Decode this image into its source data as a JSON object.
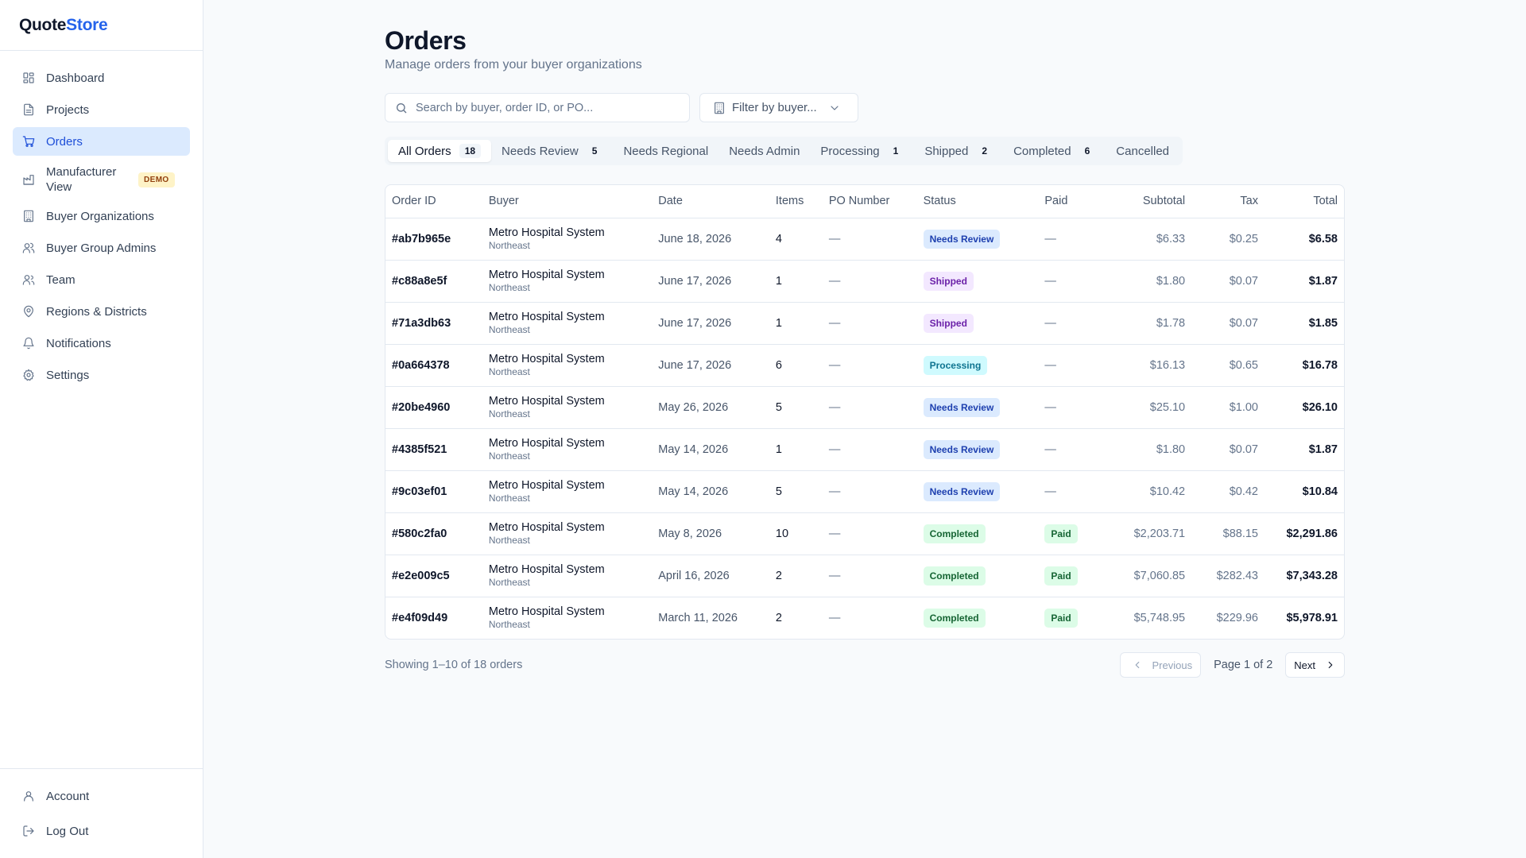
{
  "app": {
    "name_part1": "Quote",
    "name_part2": "Store"
  },
  "sidebar": {
    "items": [
      {
        "label": "Dashboard",
        "icon": "dashboard-icon"
      },
      {
        "label": "Projects",
        "icon": "document-icon"
      },
      {
        "label": "Orders",
        "icon": "cart-icon",
        "active": true
      },
      {
        "label": "Manufacturer View",
        "icon": "factory-icon",
        "badge": "DEMO"
      },
      {
        "label": "Buyer Organizations",
        "icon": "building-icon"
      },
      {
        "label": "Buyer Group Admins",
        "icon": "users-icon"
      },
      {
        "label": "Team",
        "icon": "team-icon"
      },
      {
        "label": "Regions & Districts",
        "icon": "map-pin-icon"
      },
      {
        "label": "Notifications",
        "icon": "bell-icon"
      },
      {
        "label": "Settings",
        "icon": "gear-icon"
      }
    ],
    "bottom": [
      {
        "label": "Account",
        "icon": "user-icon"
      },
      {
        "label": "Log Out",
        "icon": "logout-icon"
      }
    ]
  },
  "page": {
    "title": "Orders",
    "subtitle": "Manage orders from your buyer organizations"
  },
  "search": {
    "placeholder": "Search by buyer, order ID, or PO..."
  },
  "filter": {
    "label": "Filter by buyer..."
  },
  "tabs": [
    {
      "label": "All Orders",
      "count": "18",
      "active": true
    },
    {
      "label": "Needs Review",
      "count": "5"
    },
    {
      "label": "Needs Regional",
      "count": ""
    },
    {
      "label": "Needs Admin",
      "count": ""
    },
    {
      "label": "Processing",
      "count": "1"
    },
    {
      "label": "Shipped",
      "count": "2"
    },
    {
      "label": "Completed",
      "count": "6"
    },
    {
      "label": "Cancelled",
      "count": ""
    }
  ],
  "table": {
    "columns": [
      "Order ID",
      "Buyer",
      "Date",
      "Items",
      "PO Number",
      "Status",
      "Paid",
      "Subtotal",
      "Tax",
      "Total"
    ],
    "rows": [
      {
        "id": "#ab7b965e",
        "buyer": "Metro Hospital System",
        "region": "Northeast",
        "date": "June 18, 2026",
        "items": "4",
        "po": "—",
        "status": "Needs Review",
        "paid": "—",
        "subtotal": "$6.33",
        "tax": "$0.25",
        "total": "$6.58"
      },
      {
        "id": "#c88a8e5f",
        "buyer": "Metro Hospital System",
        "region": "Northeast",
        "date": "June 17, 2026",
        "items": "1",
        "po": "—",
        "status": "Shipped",
        "paid": "—",
        "subtotal": "$1.80",
        "tax": "$0.07",
        "total": "$1.87"
      },
      {
        "id": "#71a3db63",
        "buyer": "Metro Hospital System",
        "region": "Northeast",
        "date": "June 17, 2026",
        "items": "1",
        "po": "—",
        "status": "Shipped",
        "paid": "—",
        "subtotal": "$1.78",
        "tax": "$0.07",
        "total": "$1.85"
      },
      {
        "id": "#0a664378",
        "buyer": "Metro Hospital System",
        "region": "Northeast",
        "date": "June 17, 2026",
        "items": "6",
        "po": "—",
        "status": "Processing",
        "paid": "—",
        "subtotal": "$16.13",
        "tax": "$0.65",
        "total": "$16.78"
      },
      {
        "id": "#20be4960",
        "buyer": "Metro Hospital System",
        "region": "Northeast",
        "date": "May 26, 2026",
        "items": "5",
        "po": "—",
        "status": "Needs Review",
        "paid": "—",
        "subtotal": "$25.10",
        "tax": "$1.00",
        "total": "$26.10"
      },
      {
        "id": "#4385f521",
        "buyer": "Metro Hospital System",
        "region": "Northeast",
        "date": "May 14, 2026",
        "items": "1",
        "po": "—",
        "status": "Needs Review",
        "paid": "—",
        "subtotal": "$1.80",
        "tax": "$0.07",
        "total": "$1.87"
      },
      {
        "id": "#9c03ef01",
        "buyer": "Metro Hospital System",
        "region": "Northeast",
        "date": "May 14, 2026",
        "items": "5",
        "po": "—",
        "status": "Needs Review",
        "paid": "—",
        "subtotal": "$10.42",
        "tax": "$0.42",
        "total": "$10.84"
      },
      {
        "id": "#580c2fa0",
        "buyer": "Metro Hospital System",
        "region": "Northeast",
        "date": "May 8, 2026",
        "items": "10",
        "po": "—",
        "status": "Completed",
        "paid": "Paid",
        "subtotal": "$2,203.71",
        "tax": "$88.15",
        "total": "$2,291.86"
      },
      {
        "id": "#e2e009c5",
        "buyer": "Metro Hospital System",
        "region": "Northeast",
        "date": "April 16, 2026",
        "items": "2",
        "po": "—",
        "status": "Completed",
        "paid": "Paid",
        "subtotal": "$7,060.85",
        "tax": "$282.43",
        "total": "$7,343.28"
      },
      {
        "id": "#e4f09d49",
        "buyer": "Metro Hospital System",
        "region": "Northeast",
        "date": "March 11, 2026",
        "items": "2",
        "po": "—",
        "status": "Completed",
        "paid": "Paid",
        "subtotal": "$5,748.95",
        "tax": "$229.96",
        "total": "$5,978.91"
      }
    ]
  },
  "footer": {
    "showing": "Showing 1–10 of 18 orders",
    "previous": "Previous",
    "page_info": "Page 1 of 2",
    "next": "Next"
  },
  "colors": {
    "accent": "#2563eb",
    "active_nav_bg": "#dbeafe",
    "text": "#0f172a",
    "muted": "#64748b"
  }
}
